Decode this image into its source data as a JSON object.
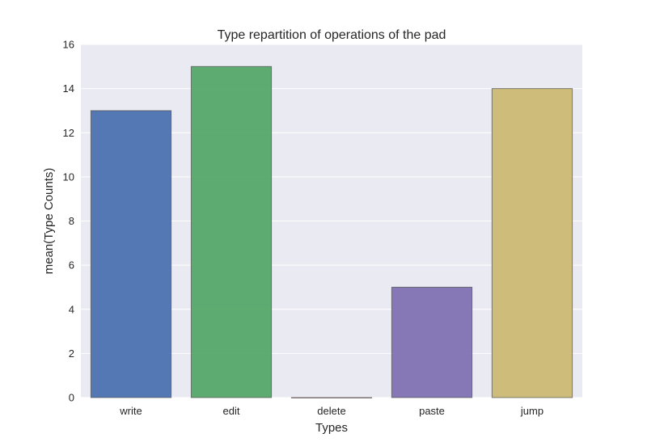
{
  "chart_data": {
    "type": "bar",
    "title": "Type repartition of operations of the pad",
    "xlabel": "Types",
    "ylabel": "mean(Type Counts)",
    "categories": [
      "write",
      "edit",
      "delete",
      "paste",
      "jump"
    ],
    "values": [
      13,
      15,
      0,
      5,
      14
    ],
    "ylim": [
      0,
      16
    ],
    "yticks": [
      "0",
      "2",
      "4",
      "6",
      "8",
      "10",
      "12",
      "14",
      "16"
    ],
    "grid": true,
    "colors": [
      "#4c72b0",
      "#55a868",
      "#c44e52",
      "#8172b2",
      "#ccb974"
    ],
    "plot_background": "#eaeaf2",
    "grid_color": "#ffffff"
  }
}
